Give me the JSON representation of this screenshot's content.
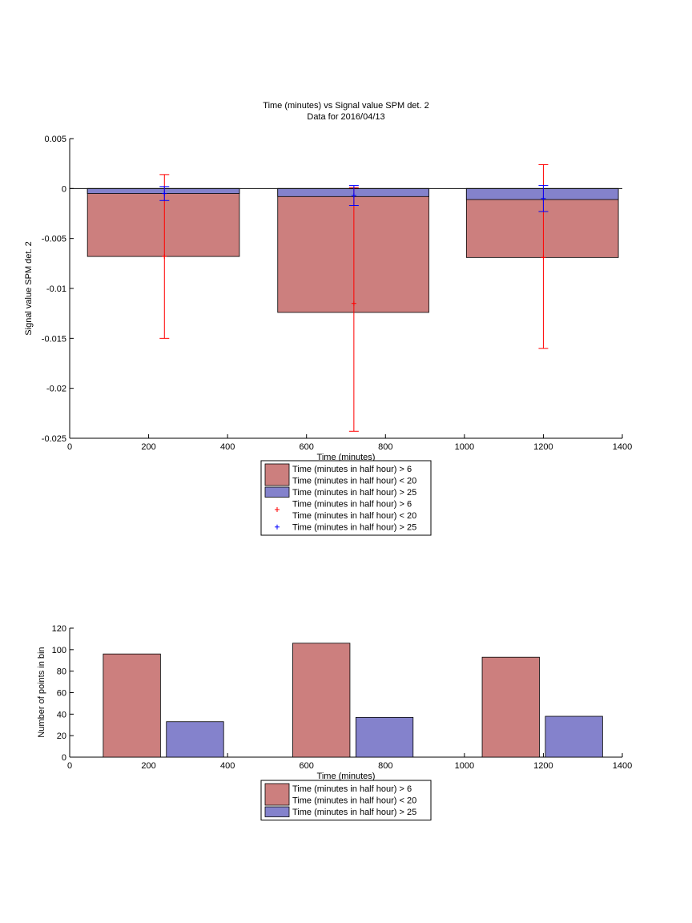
{
  "chart_data": [
    {
      "type": "bar",
      "title": "Time (minutes) vs Signal value SPM det. 2",
      "subtitle": "Data for 2016/04/13",
      "xlabel": "Time (minutes)",
      "ylabel": "Signal value SPM det. 2",
      "xlim": [
        0,
        1400
      ],
      "ylim": [
        -0.025,
        0.005
      ],
      "xticks": [
        "0",
        "200",
        "400",
        "600",
        "800",
        "1000",
        "1200",
        "1400"
      ],
      "yticks": [
        "0.005",
        "0",
        "-0.005",
        "-0.01",
        "-0.015",
        "-0.02",
        "-0.025"
      ],
      "grid": false,
      "legend_position": "bottom-center",
      "series": [
        {
          "name": "Time (minutes in half hour) > 6\nTime (minutes in half hour) < 20",
          "color": "#cc7f7e",
          "x_ranges": [
            [
              45,
              430
            ],
            [
              527,
              910
            ],
            [
              1005,
              1390
            ]
          ],
          "values": [
            -0.0068,
            -0.0124,
            -0.0069
          ],
          "error_x": [
            240,
            720,
            1200
          ],
          "error_center": [
            -0.0068,
            -0.0115,
            -0.0069
          ],
          "error_low": [
            -0.015,
            -0.0243,
            -0.016
          ],
          "error_high": [
            0.0014,
            0.0001,
            0.0024
          ],
          "error_color": "#ff0000"
        },
        {
          "name": "Time (minutes in half hour) > 25",
          "color": "#8482cc",
          "x_ranges": [
            [
              45,
              430
            ],
            [
              527,
              910
            ],
            [
              1005,
              1390
            ]
          ],
          "values": [
            -0.0005,
            -0.0008,
            -0.0011
          ],
          "error_x": [
            240,
            720,
            1200
          ],
          "error_center": [
            -0.0005,
            -0.0007,
            -0.001
          ],
          "error_low": [
            -0.0012,
            -0.0017,
            -0.0023
          ],
          "error_high": [
            0.0002,
            0.0003,
            0.0003
          ],
          "error_color": "#0000ff"
        }
      ],
      "legend": [
        {
          "kind": "patch",
          "color": "#cc7f7e",
          "lines": [
            "Time (minutes in half hour) > 6",
            "Time (minutes in half hour) < 20"
          ]
        },
        {
          "kind": "patch",
          "color": "#8482cc",
          "lines": [
            "Time (minutes in half hour) > 25"
          ]
        },
        {
          "kind": "marker",
          "color": "#ff0000",
          "lines": [
            "Time (minutes in half hour) > 6",
            "Time (minutes in half hour) < 20"
          ]
        },
        {
          "kind": "marker",
          "color": "#0000ff",
          "lines": [
            "Time (minutes in half hour) > 25"
          ]
        }
      ]
    },
    {
      "type": "bar",
      "title": "",
      "xlabel": "Time (minutes)",
      "ylabel": "Number of points in bin",
      "xlim": [
        0,
        1400
      ],
      "ylim": [
        0,
        120
      ],
      "xticks": [
        "0",
        "200",
        "400",
        "600",
        "800",
        "1000",
        "1200",
        "1400"
      ],
      "yticks": [
        "120",
        "100",
        "80",
        "60",
        "40",
        "20",
        "0"
      ],
      "grid": false,
      "legend_position": "bottom-center",
      "series": [
        {
          "name": "Time (minutes in half hour) > 6\nTime (minutes in half hour) < 20",
          "color": "#cc7f7e",
          "x_ranges": [
            [
              85,
              230
            ],
            [
              565,
              710
            ],
            [
              1045,
              1190
            ]
          ],
          "values": [
            96,
            106,
            93
          ]
        },
        {
          "name": "Time (minutes in half hour) > 25",
          "color": "#8482cc",
          "x_ranges": [
            [
              245,
              390
            ],
            [
              725,
              870
            ],
            [
              1205,
              1350
            ]
          ],
          "values": [
            33,
            37,
            38
          ]
        }
      ],
      "legend": [
        {
          "kind": "patch",
          "color": "#cc7f7e",
          "lines": [
            "Time (minutes in half hour) > 6",
            "Time (minutes in half hour) < 20"
          ]
        },
        {
          "kind": "patch",
          "color": "#8482cc",
          "lines": [
            "Time (minutes in half hour) > 25"
          ]
        }
      ]
    }
  ]
}
